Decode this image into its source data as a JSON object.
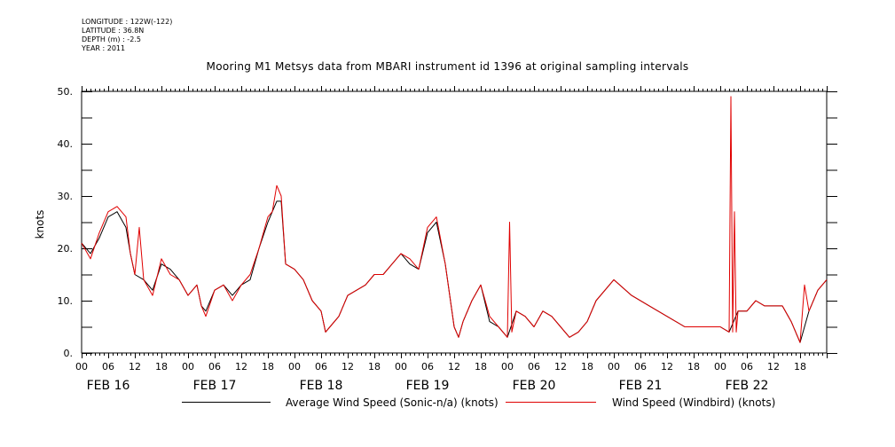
{
  "meta": {
    "longitude": "LONGITUDE : 122W(-122)",
    "latitude": "LATITUDE : 36.8N",
    "depth": "DEPTH (m) : -2.5",
    "year": "YEAR : 2011"
  },
  "chart_data": {
    "type": "line",
    "title": "Mooring M1 Metsys data from MBARI instrument id 1396 at original sampling intervals",
    "ylabel": "knots",
    "xlabel": "",
    "ylim": [
      0,
      50
    ],
    "xlim_hours": [
      0,
      168
    ],
    "y_ticks": [
      "0.",
      "10.",
      "20.",
      "30.",
      "40.",
      "50."
    ],
    "hour_tick_labels": [
      "00",
      "06",
      "12",
      "18"
    ],
    "day_labels": [
      "FEB 16",
      "FEB 17",
      "FEB 18",
      "FEB 19",
      "FEB 20",
      "FEB 21",
      "FEB 22"
    ],
    "legend_placement": "bottom",
    "series": [
      {
        "name": "Average Wind Speed (Sonic-n/a) (knots)",
        "color": "#000000",
        "points": [
          [
            0,
            21
          ],
          [
            2,
            19
          ],
          [
            4,
            22
          ],
          [
            6,
            26
          ],
          [
            8,
            27
          ],
          [
            10,
            24
          ],
          [
            11,
            19
          ],
          [
            12,
            15
          ],
          [
            14,
            14
          ],
          [
            16,
            12
          ],
          [
            18,
            17
          ],
          [
            20,
            16
          ],
          [
            22,
            14
          ],
          [
            24,
            11
          ],
          [
            26,
            13
          ],
          [
            27,
            9
          ],
          [
            28,
            8
          ],
          [
            30,
            12
          ],
          [
            32,
            13
          ],
          [
            34,
            11
          ],
          [
            36,
            13
          ],
          [
            38,
            14
          ],
          [
            40,
            20
          ],
          [
            42,
            25
          ],
          [
            43,
            27
          ],
          [
            44,
            29
          ],
          [
            45,
            29
          ],
          [
            46,
            17
          ],
          [
            48,
            16
          ],
          [
            50,
            14
          ],
          [
            52,
            10
          ],
          [
            54,
            8
          ],
          [
            55,
            4
          ],
          [
            56,
            5
          ],
          [
            58,
            7
          ],
          [
            60,
            11
          ],
          [
            62,
            12
          ],
          [
            64,
            13
          ],
          [
            66,
            15
          ],
          [
            68,
            15
          ],
          [
            70,
            17
          ],
          [
            72,
            19
          ],
          [
            74,
            17
          ],
          [
            76,
            16
          ],
          [
            78,
            23
          ],
          [
            80,
            25
          ],
          [
            82,
            17
          ],
          [
            84,
            5
          ],
          [
            85,
            3
          ],
          [
            86,
            6
          ],
          [
            88,
            10
          ],
          [
            90,
            13
          ],
          [
            92,
            6
          ],
          [
            94,
            5
          ],
          [
            96,
            3
          ],
          [
            98,
            8
          ],
          [
            100,
            7
          ],
          [
            102,
            5
          ],
          [
            104,
            8
          ],
          [
            106,
            7
          ],
          [
            108,
            5
          ],
          [
            110,
            3
          ],
          [
            112,
            4
          ],
          [
            114,
            6
          ],
          [
            116,
            10
          ],
          [
            120,
            14
          ],
          [
            124,
            11
          ],
          [
            128,
            9
          ],
          [
            136,
            5
          ],
          [
            140,
            5
          ],
          [
            144,
            5
          ],
          [
            146,
            4
          ],
          [
            148,
            8
          ],
          [
            150,
            8
          ],
          [
            152,
            10
          ],
          [
            154,
            9
          ],
          [
            156,
            9
          ],
          [
            158,
            9
          ],
          [
            160,
            6
          ],
          [
            162,
            2
          ],
          [
            164,
            8
          ],
          [
            166,
            12
          ],
          [
            168,
            14
          ]
        ]
      },
      {
        "name": "Wind Speed (Windbird) (knots)",
        "color": "#e00000",
        "points": [
          [
            0,
            21
          ],
          [
            2,
            18
          ],
          [
            4,
            23
          ],
          [
            6,
            27
          ],
          [
            8,
            28
          ],
          [
            10,
            26
          ],
          [
            11,
            19
          ],
          [
            12,
            15
          ],
          [
            13,
            24
          ],
          [
            14,
            14
          ],
          [
            16,
            11
          ],
          [
            18,
            18
          ],
          [
            20,
            15
          ],
          [
            22,
            14
          ],
          [
            24,
            11
          ],
          [
            26,
            13
          ],
          [
            27,
            9
          ],
          [
            28,
            7
          ],
          [
            30,
            12
          ],
          [
            32,
            13
          ],
          [
            34,
            10
          ],
          [
            36,
            13
          ],
          [
            38,
            15
          ],
          [
            40,
            20
          ],
          [
            42,
            26
          ],
          [
            43,
            27
          ],
          [
            44,
            32
          ],
          [
            45,
            30
          ],
          [
            46,
            17
          ],
          [
            48,
            16
          ],
          [
            50,
            14
          ],
          [
            52,
            10
          ],
          [
            54,
            8
          ],
          [
            55,
            4
          ],
          [
            56,
            5
          ],
          [
            58,
            7
          ],
          [
            60,
            11
          ],
          [
            62,
            12
          ],
          [
            64,
            13
          ],
          [
            66,
            15
          ],
          [
            68,
            15
          ],
          [
            70,
            17
          ],
          [
            72,
            19
          ],
          [
            74,
            18
          ],
          [
            76,
            16
          ],
          [
            78,
            24
          ],
          [
            80,
            26
          ],
          [
            82,
            17
          ],
          [
            84,
            5
          ],
          [
            85,
            3
          ],
          [
            86,
            6
          ],
          [
            88,
            10
          ],
          [
            90,
            13
          ],
          [
            92,
            7
          ],
          [
            94,
            5
          ],
          [
            96,
            3
          ],
          [
            96.5,
            25
          ],
          [
            97,
            4
          ],
          [
            98,
            8
          ],
          [
            100,
            7
          ],
          [
            102,
            5
          ],
          [
            104,
            8
          ],
          [
            106,
            7
          ],
          [
            108,
            5
          ],
          [
            110,
            3
          ],
          [
            112,
            4
          ],
          [
            114,
            6
          ],
          [
            116,
            10
          ],
          [
            120,
            14
          ],
          [
            124,
            11
          ],
          [
            128,
            9
          ],
          [
            136,
            5
          ],
          [
            140,
            5
          ],
          [
            144,
            5
          ],
          [
            146,
            4
          ],
          [
            146.4,
            49
          ],
          [
            146.8,
            4
          ],
          [
            147.2,
            27
          ],
          [
            147.6,
            4
          ],
          [
            148,
            8
          ],
          [
            150,
            8
          ],
          [
            152,
            10
          ],
          [
            154,
            9
          ],
          [
            156,
            9
          ],
          [
            158,
            9
          ],
          [
            160,
            6
          ],
          [
            162,
            2
          ],
          [
            163,
            13
          ],
          [
            164,
            8
          ],
          [
            166,
            12
          ],
          [
            168,
            14
          ]
        ]
      }
    ]
  }
}
